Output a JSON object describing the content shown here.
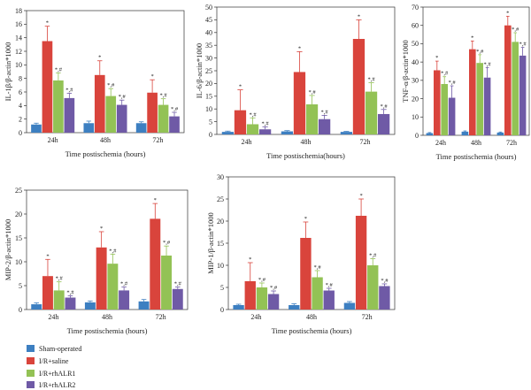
{
  "legend": {
    "position": "bottom-left",
    "items": [
      {
        "label": "Sham-operated",
        "color": "#3d7fc1"
      },
      {
        "label": "I/R+saline",
        "color": "#d9443c"
      },
      {
        "label": "I/R+rhALR1",
        "color": "#93c255"
      },
      {
        "label": "I/R+rhALR2",
        "color": "#6f5aa6"
      }
    ]
  },
  "chart_data": [
    {
      "type": "bar",
      "ylabel": "IL-1β/β-actin*1000",
      "xlabel": "Time postischemia (hours)",
      "ylim": [
        0,
        18
      ],
      "yticks": [
        0,
        2,
        4,
        6,
        8,
        10,
        12,
        14,
        16,
        18
      ],
      "grid": false,
      "categories": [
        "24h",
        "48h",
        "72h"
      ],
      "series": [
        {
          "name": "Sham-operated",
          "values": [
            1.2,
            1.4,
            1.4
          ],
          "errors": [
            0.2,
            0.3,
            0.2
          ]
        },
        {
          "name": "I/R+saline",
          "values": [
            13.5,
            8.5,
            5.9
          ],
          "errors": [
            2.2,
            2.1,
            1.9
          ],
          "labels": [
            "*",
            "*",
            "*"
          ]
        },
        {
          "name": "I/R+rhALR1",
          "values": [
            7.7,
            5.4,
            4.1
          ],
          "errors": [
            1.1,
            1.1,
            0.9
          ],
          "labels": [
            "*,#",
            "*,#",
            "*,#"
          ]
        },
        {
          "name": "I/R+rhALR2",
          "values": [
            5.1,
            4.1,
            2.4
          ],
          "errors": [
            0.7,
            0.7,
            0.6
          ],
          "labels": [
            "*,#",
            "*,#",
            "*,#"
          ]
        }
      ]
    },
    {
      "type": "bar",
      "ylabel": "IL-6/β-actin*1000",
      "xlabel": "Time postischemia(hours)",
      "ylim": [
        0,
        50
      ],
      "yticks": [
        0,
        5,
        10,
        15,
        20,
        25,
        30,
        35,
        40,
        45,
        50
      ],
      "grid": false,
      "categories": [
        "24h",
        "48h",
        "72h"
      ],
      "series": [
        {
          "name": "Sham-operated",
          "values": [
            1.0,
            1.2,
            1.0
          ],
          "errors": [
            0.3,
            0.3,
            0.2
          ]
        },
        {
          "name": "I/R+saline",
          "values": [
            9.5,
            24.5,
            37.5
          ],
          "errors": [
            8.0,
            8.0,
            7.5
          ],
          "labels": [
            "*",
            "*",
            "*"
          ]
        },
        {
          "name": "I/R+rhALR1",
          "values": [
            4.0,
            11.8,
            16.8
          ],
          "errors": [
            2.5,
            3.5,
            3.5
          ],
          "labels": [
            "*,#",
            "*,#",
            "*,#"
          ]
        },
        {
          "name": "I/R+rhALR2",
          "values": [
            2.0,
            6.0,
            8.0
          ],
          "errors": [
            1.0,
            1.5,
            1.8
          ],
          "labels": [
            "*,#",
            "*,#",
            "*,#"
          ]
        }
      ]
    },
    {
      "type": "bar",
      "ylabel": "TNF-α/β-actin*1000",
      "xlabel": "Time postischemia (hours)",
      "ylim": [
        0,
        70
      ],
      "yticks": [
        0,
        10,
        20,
        30,
        40,
        50,
        60,
        70
      ],
      "grid": false,
      "categories": [
        "24h",
        "48h",
        "72h"
      ],
      "series": [
        {
          "name": "Sham-operated",
          "values": [
            1.2,
            2.0,
            1.5
          ],
          "errors": [
            0.3,
            0.4,
            0.3
          ]
        },
        {
          "name": "I/R+saline",
          "values": [
            35.5,
            47.0,
            60.0
          ],
          "errors": [
            5.0,
            4.5,
            5.0
          ],
          "labels": [
            "*",
            "*",
            "*"
          ]
        },
        {
          "name": "I/R+rhALR1",
          "values": [
            28.0,
            39.5,
            51.0
          ],
          "errors": [
            4.0,
            4.5,
            5.0
          ],
          "labels": [
            "*,#",
            "*,#",
            "*,#"
          ]
        },
        {
          "name": "I/R+rhALR2",
          "values": [
            20.5,
            31.5,
            43.5
          ],
          "errors": [
            6.5,
            5.5,
            4.5
          ],
          "labels": [
            "*,#",
            "*,#",
            "*,#"
          ]
        }
      ]
    },
    {
      "type": "bar",
      "ylabel": "MIP-2/β-actin*1000",
      "xlabel": "Time postischemia (hours)",
      "ylim": [
        0,
        25
      ],
      "yticks": [
        0,
        5,
        10,
        15,
        20,
        25
      ],
      "grid": false,
      "categories": [
        "24h",
        "48h",
        "72h"
      ],
      "series": [
        {
          "name": "Sham-operated",
          "values": [
            1.1,
            1.5,
            1.7
          ],
          "errors": [
            0.3,
            0.3,
            0.4
          ]
        },
        {
          "name": "I/R+saline",
          "values": [
            7.0,
            13.0,
            19.0
          ],
          "errors": [
            3.5,
            3.3,
            3.2
          ],
          "labels": [
            "*",
            "*",
            "*"
          ]
        },
        {
          "name": "I/R+rhALR1",
          "values": [
            4.0,
            9.6,
            11.3
          ],
          "errors": [
            1.8,
            2.0,
            2.0
          ],
          "labels": [
            "*,#",
            "*,#",
            "*,#"
          ]
        },
        {
          "name": "I/R+rhALR2",
          "values": [
            2.5,
            4.0,
            4.3
          ],
          "errors": [
            0.4,
            0.7,
            0.4
          ],
          "labels": [
            "*,#",
            "*,#",
            "*,#"
          ]
        }
      ]
    },
    {
      "type": "bar",
      "ylabel": "MIP-1/β-actin*1000",
      "xlabel": "Time postischemia (hours)",
      "ylim": [
        0,
        30
      ],
      "yticks": [
        0,
        5,
        10,
        15,
        20,
        25,
        30
      ],
      "grid": false,
      "categories": [
        "24h",
        "48h",
        "72h"
      ],
      "series": [
        {
          "name": "Sham-operated",
          "values": [
            1.0,
            1.0,
            1.5
          ],
          "errors": [
            0.2,
            0.3,
            0.3
          ]
        },
        {
          "name": "I/R+saline",
          "values": [
            6.4,
            16.2,
            21.2
          ],
          "errors": [
            4.2,
            3.6,
            3.8
          ],
          "labels": [
            "*",
            "*",
            "*"
          ]
        },
        {
          "name": "I/R+rhALR1",
          "values": [
            5.0,
            7.3,
            10.0
          ],
          "errors": [
            1.0,
            1.5,
            1.5
          ],
          "labels": [
            "*,#",
            "*,#",
            "*,#"
          ]
        },
        {
          "name": "I/R+rhALR2",
          "values": [
            3.5,
            4.3,
            5.3
          ],
          "errors": [
            0.7,
            0.5,
            0.5
          ],
          "labels": [
            "*,#",
            "*,#",
            "*,#"
          ]
        }
      ]
    }
  ]
}
